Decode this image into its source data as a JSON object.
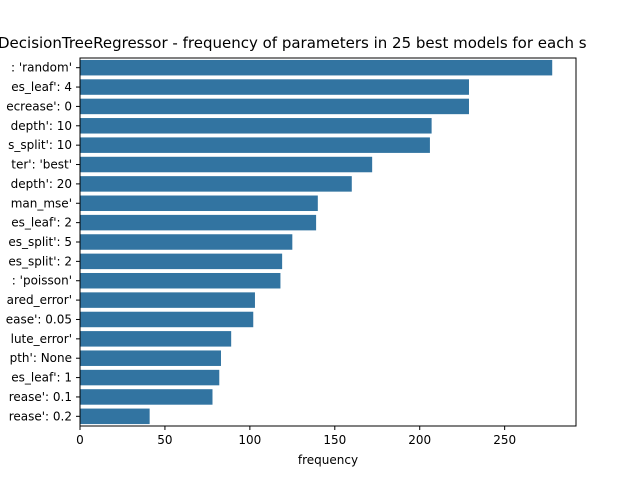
{
  "chart_data": {
    "type": "bar",
    "orientation": "horizontal",
    "title": "DecisionTreeRegressor - frequency of parameters in 25 best models for each s",
    "xlabel": "frequency",
    "ylabel": "",
    "xlim": [
      0,
      292
    ],
    "xticks": [
      0,
      50,
      100,
      150,
      200,
      250
    ],
    "bar_color": "#3274a1",
    "grid": false,
    "categories": [
      ": 'random'",
      "es_leaf': 4",
      "ecrease': 0",
      "depth': 10",
      "s_split': 10",
      "ter': 'best'",
      "depth': 20",
      "man_mse'",
      "es_leaf': 2",
      "es_split': 5",
      "es_split': 2",
      ": 'poisson'",
      "ared_error'",
      "ease': 0.05",
      "lute_error'",
      "pth': None",
      "es_leaf': 1",
      "rease': 0.1",
      "rease': 0.2"
    ],
    "values": [
      278,
      229,
      229,
      207,
      206,
      172,
      160,
      140,
      139,
      125,
      119,
      118,
      103,
      102,
      89,
      83,
      82,
      78,
      41
    ]
  }
}
